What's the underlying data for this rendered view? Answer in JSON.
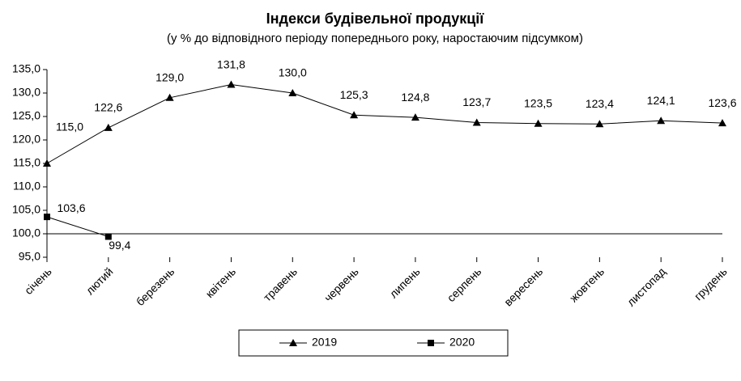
{
  "chart_data": {
    "type": "line",
    "title": "Індекси будівельної продукції",
    "subtitle": "(у % до відповідного періоду попереднього року, наростаючим підсумком)",
    "categories": [
      "січень",
      "лютий",
      "березень",
      "квітень",
      "травень",
      "червень",
      "липень",
      "серпень",
      "вересень",
      "жовтень",
      "листопад",
      "грудень"
    ],
    "series": [
      {
        "name": "2019",
        "color": "#000000",
        "marker": "triangle",
        "values": [
          115.0,
          122.6,
          129.0,
          131.8,
          130.0,
          125.3,
          124.8,
          123.7,
          123.5,
          123.4,
          124.1,
          123.6
        ],
        "value_labels": [
          "115,0",
          "122,6",
          "129,0",
          "131,8",
          "130,0",
          "125,3",
          "124,8",
          "123,7",
          "123,5",
          "123,4",
          "124,1",
          "123,6"
        ]
      },
      {
        "name": "2020",
        "color": "#000000",
        "marker": "square",
        "values": [
          103.6,
          99.4,
          null,
          null,
          null,
          null,
          null,
          null,
          null,
          null,
          null,
          null
        ],
        "value_labels": [
          "103,6",
          "99,4",
          null,
          null,
          null,
          null,
          null,
          null,
          null,
          null,
          null,
          null
        ]
      }
    ],
    "ylim": [
      95,
      135
    ],
    "yticks": [
      {
        "value": 95,
        "label": "95,0"
      },
      {
        "value": 100,
        "label": "100,0"
      },
      {
        "value": 105,
        "label": "105,0"
      },
      {
        "value": 110,
        "label": "110,0"
      },
      {
        "value": 115,
        "label": "115,0"
      },
      {
        "value": 120,
        "label": "120,0"
      },
      {
        "value": 125,
        "label": "125,0"
      },
      {
        "value": 130,
        "label": "130,0"
      },
      {
        "value": 135,
        "label": "135,0"
      }
    ],
    "x_axis_crossing": 100,
    "grid": false,
    "legend": "bottom"
  }
}
